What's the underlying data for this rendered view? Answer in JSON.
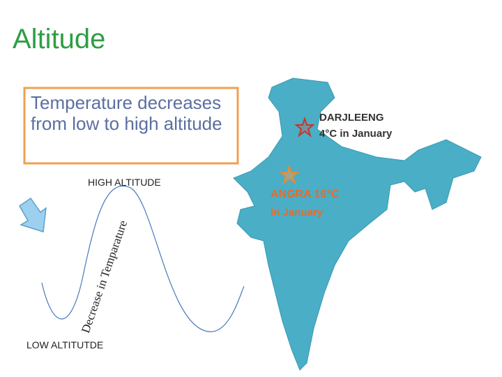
{
  "header": {
    "title": "Altitude"
  },
  "callout": {
    "text": "Temperature decreases from low to high altitude"
  },
  "diagram": {
    "top_label": "HIGH ALTITUDE",
    "curve_label": "Decrease in Temparature",
    "bottom_label": "LOW ALTITUTDE"
  },
  "map": {
    "places": [
      {
        "name": "DARJLEENG",
        "note": "4°C in January"
      },
      {
        "name": "ANGRA 16°C",
        "note": "in January"
      }
    ]
  }
}
